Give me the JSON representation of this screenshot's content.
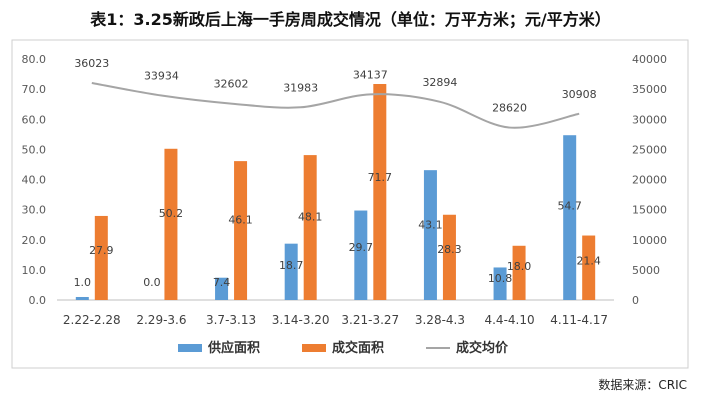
{
  "chart_data": {
    "type": "bar",
    "title": "表1：3.25新政后上海一手房周成交情况（单位：万平方米；元/平方米）",
    "categories": [
      "2.22-2.28",
      "2.29-3.6",
      "3.7-3.13",
      "3.14-3.20",
      "3.21-3.27",
      "3.28-4.3",
      "4.4-4.10",
      "4.11-4.17"
    ],
    "series": [
      {
        "name": "供应面积",
        "kind": "bar",
        "axis": "left",
        "color": "#5b9bd5",
        "values": [
          1.0,
          0.0,
          7.4,
          18.7,
          29.7,
          43.1,
          10.8,
          54.7
        ]
      },
      {
        "name": "成交面积",
        "kind": "bar",
        "axis": "left",
        "color": "#ed7d31",
        "values": [
          27.9,
          50.2,
          46.1,
          48.1,
          71.7,
          28.3,
          18.0,
          21.4
        ]
      },
      {
        "name": "成交均价",
        "kind": "line",
        "axis": "right",
        "color": "#a5a5a5",
        "values": [
          36023,
          33934,
          32602,
          31983,
          34137,
          32894,
          28620,
          30908
        ]
      }
    ],
    "ylim_left": [
      0,
      80
    ],
    "yticks_left": [
      "0.0",
      "10.0",
      "20.0",
      "30.0",
      "40.0",
      "50.0",
      "60.0",
      "70.0",
      "80.0"
    ],
    "ylim_right": [
      0,
      40000
    ],
    "yticks_right": [
      "0",
      "5000",
      "10000",
      "15000",
      "20000",
      "25000",
      "30000",
      "35000",
      "40000"
    ],
    "grid": false,
    "legend_position": "bottom"
  },
  "source": "数据来源：CRIC"
}
